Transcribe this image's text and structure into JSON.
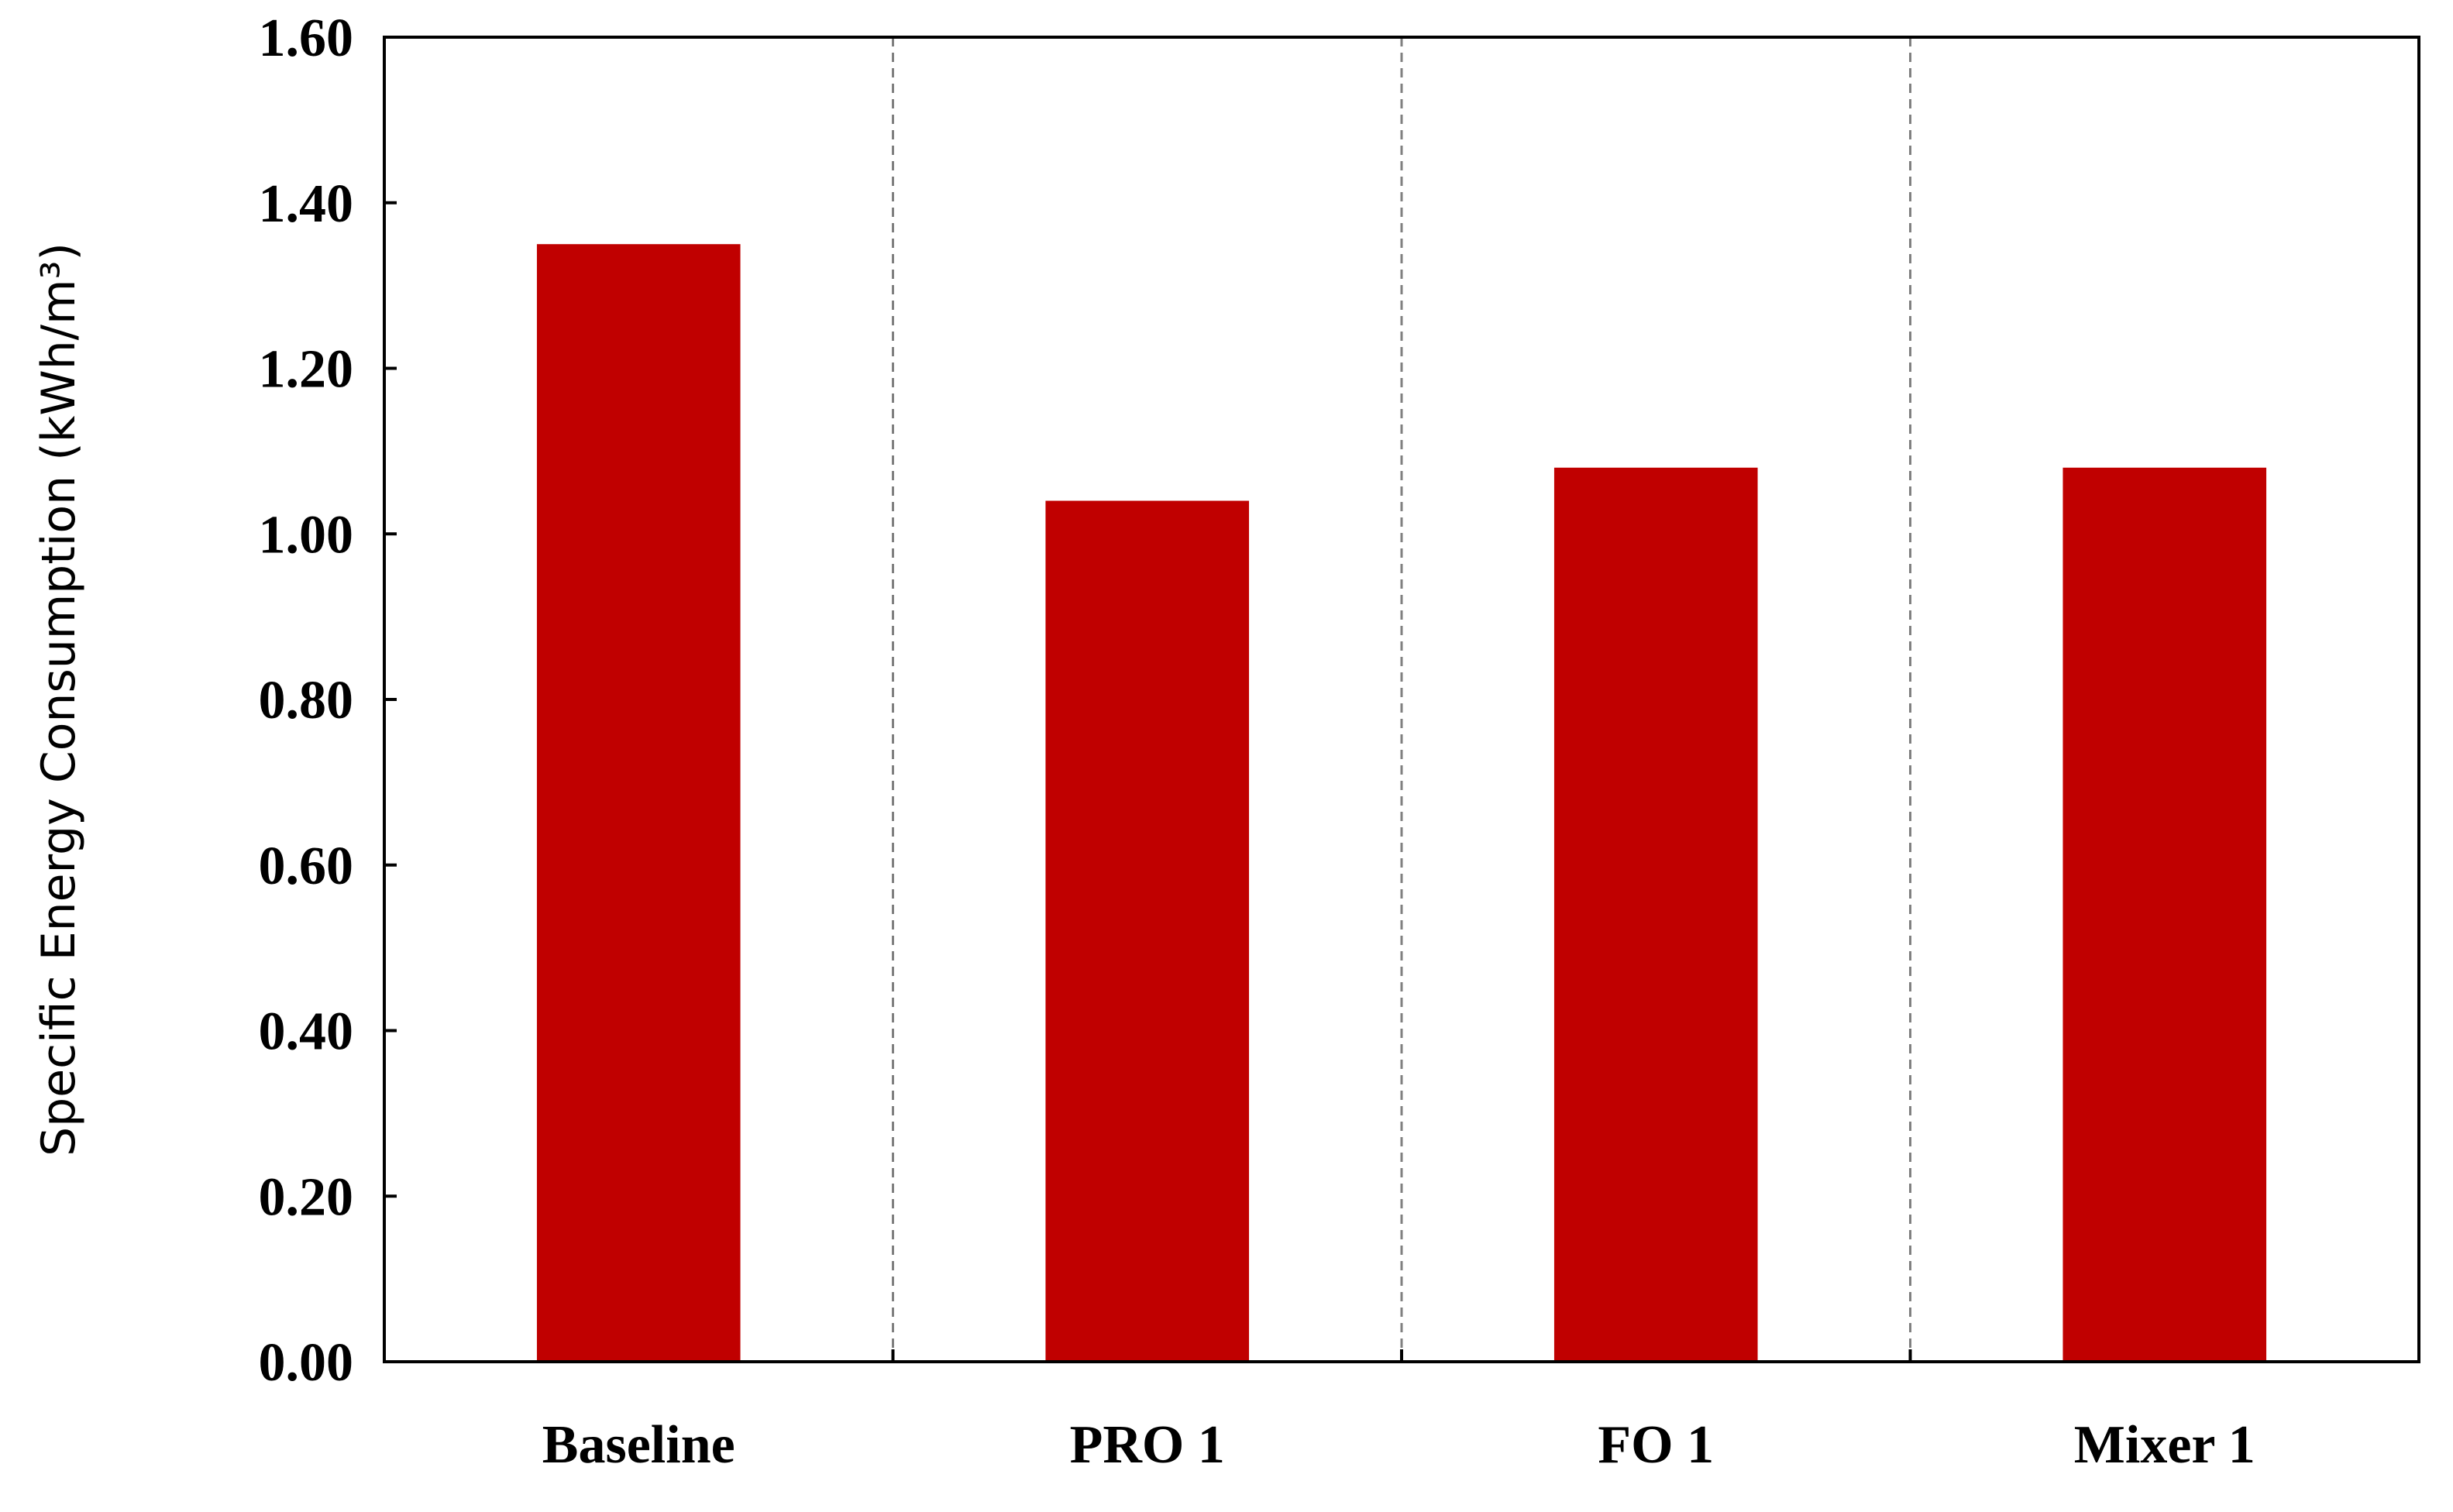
{
  "chart_data": {
    "type": "bar",
    "categories": [
      "Baseline",
      "PRO 1",
      "FO 1",
      "Mixer 1"
    ],
    "series": [
      {
        "values": [
          1.35,
          1.04,
          1.08,
          1.08
        ]
      }
    ],
    "title": "",
    "xlabel": "",
    "ylabel": "Specific Energy Consumption (kWh/m³)",
    "ylim": [
      0,
      1.6
    ],
    "yticks": [
      "0.00",
      "0.20",
      "0.40",
      "0.60",
      "0.80",
      "1.00",
      "1.20",
      "1.40",
      "1.60"
    ],
    "category_separators": "dashed vertical lines",
    "grid": false,
    "legend": "none",
    "colors": {
      "bar": "#c00000",
      "axis": "#000000",
      "separator": "#808080"
    }
  }
}
